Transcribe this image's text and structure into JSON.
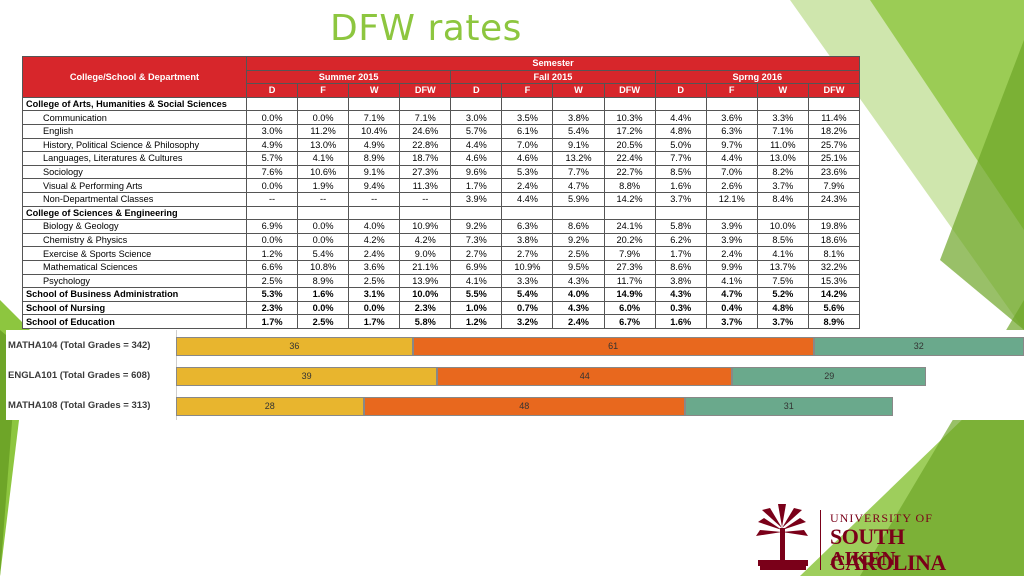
{
  "slide": {
    "title": "DFW rates"
  },
  "table": {
    "header": {
      "college_label": "College/School & Department",
      "semester_label": "Semester",
      "terms": [
        "Summer 2015",
        "Fall 2015",
        "Sprng 2016"
      ],
      "sub_columns": [
        "D",
        "F",
        "W",
        "DFW"
      ]
    },
    "rows": [
      {
        "name": "College of Arts, Humanities & Social Sciences",
        "type": "group",
        "values": []
      },
      {
        "name": "Communication",
        "type": "dept",
        "values": [
          "0.0%",
          "0.0%",
          "7.1%",
          "7.1%",
          "3.0%",
          "3.5%",
          "3.8%",
          "10.3%",
          "4.4%",
          "3.6%",
          "3.3%",
          "11.4%"
        ]
      },
      {
        "name": "English",
        "type": "dept",
        "values": [
          "3.0%",
          "11.2%",
          "10.4%",
          "24.6%",
          "5.7%",
          "6.1%",
          "5.4%",
          "17.2%",
          "4.8%",
          "6.3%",
          "7.1%",
          "18.2%"
        ]
      },
      {
        "name": "History, Political Science & Philosophy",
        "type": "dept",
        "values": [
          "4.9%",
          "13.0%",
          "4.9%",
          "22.8%",
          "4.4%",
          "7.0%",
          "9.1%",
          "20.5%",
          "5.0%",
          "9.7%",
          "11.0%",
          "25.7%"
        ]
      },
      {
        "name": "Languages, Literatures & Cultures",
        "type": "dept",
        "values": [
          "5.7%",
          "4.1%",
          "8.9%",
          "18.7%",
          "4.6%",
          "4.6%",
          "13.2%",
          "22.4%",
          "7.7%",
          "4.4%",
          "13.0%",
          "25.1%"
        ]
      },
      {
        "name": "Sociology",
        "type": "dept",
        "values": [
          "7.6%",
          "10.6%",
          "9.1%",
          "27.3%",
          "9.6%",
          "5.3%",
          "7.7%",
          "22.7%",
          "8.5%",
          "7.0%",
          "8.2%",
          "23.6%"
        ]
      },
      {
        "name": "Visual & Performing Arts",
        "type": "dept",
        "values": [
          "0.0%",
          "1.9%",
          "9.4%",
          "11.3%",
          "1.7%",
          "2.4%",
          "4.7%",
          "8.8%",
          "1.6%",
          "2.6%",
          "3.7%",
          "7.9%"
        ]
      },
      {
        "name": "Non-Departmental Classes",
        "type": "dept",
        "values": [
          "--",
          "--",
          "--",
          "--",
          "3.9%",
          "4.4%",
          "5.9%",
          "14.2%",
          "3.7%",
          "12.1%",
          "8.4%",
          "24.3%"
        ]
      },
      {
        "name": "College of Sciences & Engineering",
        "type": "group",
        "values": []
      },
      {
        "name": "Biology & Geology",
        "type": "dept",
        "values": [
          "6.9%",
          "0.0%",
          "4.0%",
          "10.9%",
          "9.2%",
          "6.3%",
          "8.6%",
          "24.1%",
          "5.8%",
          "3.9%",
          "10.0%",
          "19.8%"
        ]
      },
      {
        "name": "Chemistry & Physics",
        "type": "dept",
        "values": [
          "0.0%",
          "0.0%",
          "4.2%",
          "4.2%",
          "7.3%",
          "3.8%",
          "9.2%",
          "20.2%",
          "6.2%",
          "3.9%",
          "8.5%",
          "18.6%"
        ]
      },
      {
        "name": "Exercise & Sports Science",
        "type": "dept",
        "values": [
          "1.2%",
          "5.4%",
          "2.4%",
          "9.0%",
          "2.7%",
          "2.7%",
          "2.5%",
          "7.9%",
          "1.7%",
          "2.4%",
          "4.1%",
          "8.1%"
        ]
      },
      {
        "name": "Mathematical Sciences",
        "type": "dept",
        "values": [
          "6.6%",
          "10.8%",
          "3.6%",
          "21.1%",
          "6.9%",
          "10.9%",
          "9.5%",
          "27.3%",
          "8.6%",
          "9.9%",
          "13.7%",
          "32.2%"
        ]
      },
      {
        "name": "Psychology",
        "type": "dept",
        "values": [
          "2.5%",
          "8.9%",
          "2.5%",
          "13.9%",
          "4.1%",
          "3.3%",
          "4.3%",
          "11.7%",
          "3.8%",
          "4.1%",
          "7.5%",
          "15.3%"
        ]
      },
      {
        "name": "School of Business Administration",
        "type": "school",
        "values": [
          "5.3%",
          "1.6%",
          "3.1%",
          "10.0%",
          "5.5%",
          "5.4%",
          "4.0%",
          "14.9%",
          "4.3%",
          "4.7%",
          "5.2%",
          "14.2%"
        ]
      },
      {
        "name": "School of Nursing",
        "type": "school",
        "values": [
          "2.3%",
          "0.0%",
          "0.0%",
          "2.3%",
          "1.0%",
          "0.7%",
          "4.3%",
          "6.0%",
          "0.3%",
          "0.4%",
          "4.8%",
          "5.6%"
        ]
      },
      {
        "name": "School of Education",
        "type": "school",
        "values": [
          "1.7%",
          "2.5%",
          "1.7%",
          "5.8%",
          "1.2%",
          "3.2%",
          "2.4%",
          "6.7%",
          "1.6%",
          "3.7%",
          "3.7%",
          "8.9%"
        ]
      }
    ]
  },
  "chart_data": {
    "type": "bar",
    "orientation": "horizontal",
    "stacked": true,
    "categories": [
      "MATHA104 (Total Grades = 342)",
      "ENGLA101 (Total Grades = 608)",
      "MATHA108 (Total Grades = 313)"
    ],
    "series": [
      {
        "values": [
          36,
          39,
          28
        ],
        "color": "#e8b52e"
      },
      {
        "values": [
          61,
          44,
          48
        ],
        "color": "#e8681e"
      },
      {
        "values": [
          32,
          29,
          31
        ],
        "color": "#6aa98c"
      }
    ],
    "visible_total_fraction": [
      0.89,
      1.0,
      1.0
    ]
  },
  "logo": {
    "line1": "UNIVERSITY OF",
    "line2": "SOUTH CAROLINA",
    "line3": "AIKEN"
  },
  "colors": {
    "accent_green": "#8dc63f",
    "header_red": "#d7262b",
    "usc_garnet": "#7a0019"
  }
}
